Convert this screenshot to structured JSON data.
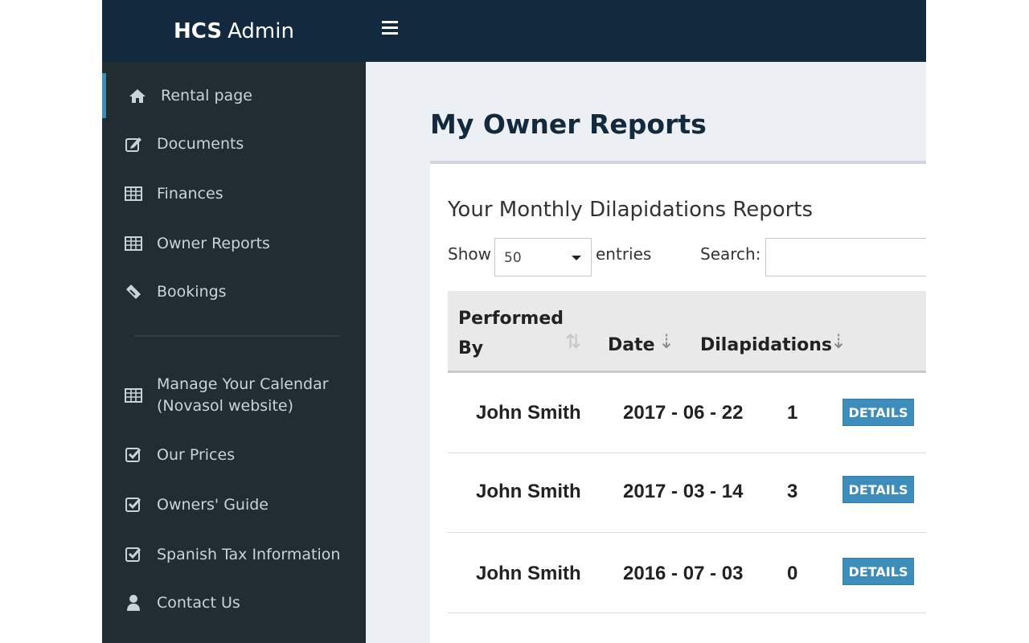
{
  "brand": {
    "bold": "HCS",
    "light": "Admin"
  },
  "sidebar": {
    "items": [
      {
        "label": "Rental page",
        "icon": "home-icon"
      },
      {
        "label": "Documents",
        "icon": "edit-icon"
      },
      {
        "label": "Finances",
        "icon": "table-icon"
      },
      {
        "label": "Owner Reports",
        "icon": "table-icon"
      },
      {
        "label": "Bookings",
        "icon": "ticket-icon"
      },
      {
        "label": "Manage Your Calendar\n(Novasol website)",
        "icon": "table-icon"
      },
      {
        "label": "Our Prices",
        "icon": "check-square-icon"
      },
      {
        "label": "Owners' Guide",
        "icon": "check-square-icon"
      },
      {
        "label": "Spanish Tax Information",
        "icon": "check-square-icon"
      },
      {
        "label": "Contact Us",
        "icon": "user-icon"
      }
    ]
  },
  "main": {
    "title": "My Owner Reports",
    "card_title": "Your Monthly Dilapidations Reports",
    "controls": {
      "show": "Show",
      "length_value": "50",
      "entries": "entries",
      "search_label": "Search:"
    },
    "table": {
      "headers": [
        "Performed\nBy",
        "Date",
        "Dilapidations"
      ],
      "rows": [
        {
          "performed_by": "John Smith",
          "date": "2017 - 06 - 22",
          "dilapidations": "1",
          "action": "DETAILS"
        },
        {
          "performed_by": "John Smith",
          "date": "2017 - 03 - 14",
          "dilapidations": "3",
          "action": "DETAILS"
        },
        {
          "performed_by": "John Smith",
          "date": "2016 - 07 - 03",
          "dilapidations": "0",
          "action": "DETAILS"
        }
      ]
    }
  },
  "colors": {
    "header_bg": "#13293d",
    "sidebar_bg": "#222d32",
    "accent": "#3c8dbc",
    "content_bg": "#ecf0f5"
  }
}
